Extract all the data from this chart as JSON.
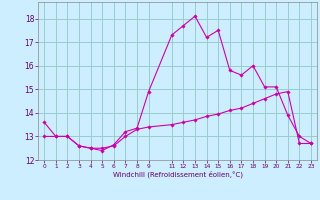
{
  "title": "",
  "xlabel": "Windchill (Refroidissement éolien,°C)",
  "bg_color": "#cceeff",
  "grid_color": "#99cccc",
  "line_color": "#cc00aa",
  "xlim": [
    -0.5,
    23.5
  ],
  "ylim": [
    12.0,
    18.7
  ],
  "yticks": [
    12,
    13,
    14,
    15,
    16,
    17,
    18
  ],
  "xticks": [
    0,
    1,
    2,
    3,
    4,
    5,
    6,
    7,
    8,
    9,
    11,
    12,
    13,
    14,
    15,
    16,
    17,
    18,
    19,
    20,
    21,
    22,
    23
  ],
  "line1_x": [
    0,
    1,
    2,
    3,
    4,
    5,
    6,
    7,
    8,
    9,
    11,
    12,
    13,
    14,
    15,
    16,
    17,
    18,
    19,
    20,
    21,
    22,
    23
  ],
  "line1_y": [
    13.6,
    13.0,
    13.0,
    12.6,
    12.5,
    12.4,
    12.65,
    13.2,
    13.35,
    14.9,
    17.3,
    17.7,
    18.1,
    17.2,
    17.5,
    15.8,
    15.6,
    16.0,
    15.1,
    15.1,
    13.9,
    13.0,
    12.7
  ],
  "line2_x": [
    0,
    1,
    2,
    3,
    4,
    5,
    6,
    7,
    8,
    9,
    11,
    12,
    13,
    14,
    15,
    16,
    17,
    18,
    19,
    20,
    21,
    22,
    23
  ],
  "line2_y": [
    13.0,
    13.0,
    13.0,
    12.6,
    12.5,
    12.5,
    12.6,
    13.0,
    13.3,
    13.4,
    13.5,
    13.6,
    13.7,
    13.85,
    13.95,
    14.1,
    14.2,
    14.4,
    14.6,
    14.8,
    14.9,
    12.7,
    12.7
  ]
}
